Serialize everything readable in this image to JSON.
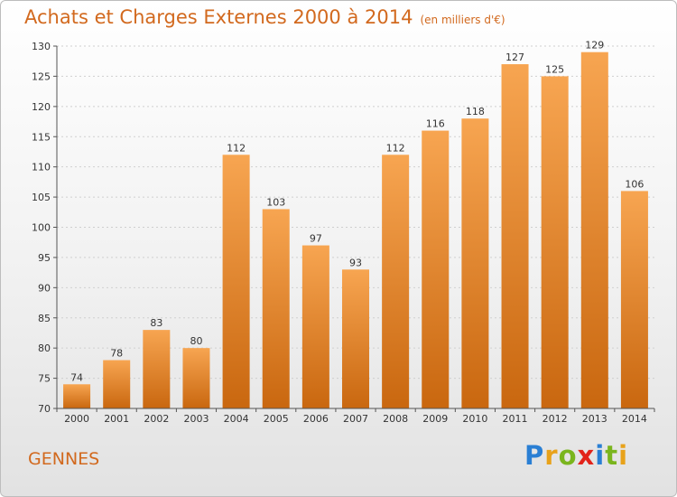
{
  "header": {
    "title": "Achats et Charges Externes 2000 à 2014",
    "subtitle": "(en milliers d'€)"
  },
  "footer": {
    "place": "GENNES",
    "brand_letters": [
      {
        "char": "P",
        "color": "#2a7fd4"
      },
      {
        "char": "r",
        "color": "#e8a21a"
      },
      {
        "char": "o",
        "color": "#7ab51d"
      },
      {
        "char": "x",
        "color": "#e2231a"
      },
      {
        "char": "i",
        "color": "#2a7fd4"
      },
      {
        "char": "t",
        "color": "#7ab51d"
      },
      {
        "char": "i",
        "color": "#e8a21a"
      }
    ]
  },
  "colors": {
    "bar_light": "#f7a551",
    "bar_dark": "#c9670f",
    "accent": "#d2691e"
  },
  "chart_data": {
    "type": "bar",
    "categories": [
      "2000",
      "2001",
      "2002",
      "2003",
      "2004",
      "2005",
      "2006",
      "2007",
      "2008",
      "2009",
      "2010",
      "2011",
      "2012",
      "2013",
      "2014"
    ],
    "values": [
      74,
      78,
      83,
      80,
      112,
      103,
      97,
      93,
      112,
      116,
      118,
      127,
      125,
      129,
      106
    ],
    "ylim": [
      70,
      130
    ],
    "yticks": [
      70,
      75,
      80,
      85,
      90,
      95,
      100,
      105,
      110,
      115,
      120,
      125,
      130
    ],
    "grid": true,
    "data_labels": true
  }
}
